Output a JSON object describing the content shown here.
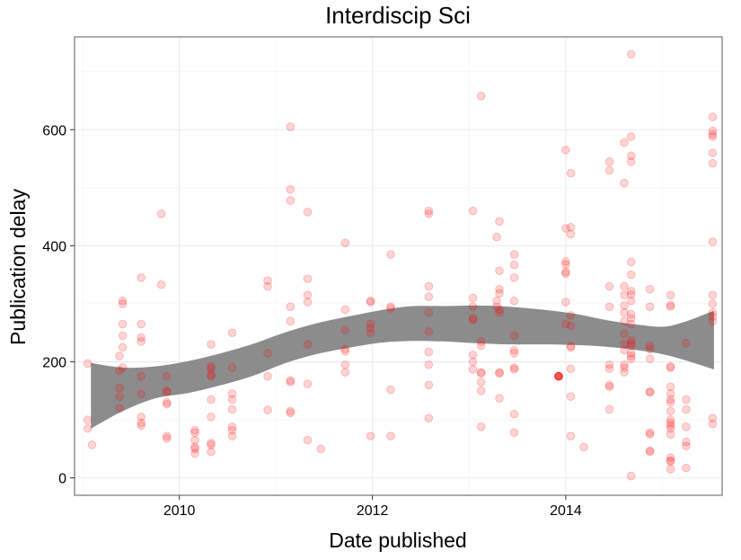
{
  "chart_data": {
    "type": "scatter",
    "title": "Interdiscip Sci",
    "xlabel": "Date published",
    "ylabel": "Publication delay",
    "x_axis_type": "date",
    "xlim": [
      "2008-12-01",
      "2015-08-15"
    ],
    "ylim": [
      -30,
      760
    ],
    "x_ticks": [
      {
        "value": "2010-01-01",
        "label": "2010"
      },
      {
        "value": "2012-01-01",
        "label": "2012"
      },
      {
        "value": "2014-01-01",
        "label": "2014"
      }
    ],
    "y_ticks": [
      {
        "value": 0,
        "label": "0"
      },
      {
        "value": 200,
        "label": "200"
      },
      {
        "value": 400,
        "label": "400"
      },
      {
        "value": 600,
        "label": "600"
      }
    ],
    "grid": true,
    "legend": "none",
    "colors": {
      "points": "#ff0000",
      "smooth_band": "#8c8c8c",
      "panel_border": "#7f7f7f"
    },
    "point_alpha": 0.17,
    "smooth": {
      "x": [
        "2009-02-01",
        "2009-06-01",
        "2009-10-01",
        "2010-02-01",
        "2010-06-01",
        "2010-10-01",
        "2011-02-01",
        "2011-06-01",
        "2011-10-01",
        "2012-02-01",
        "2012-06-01",
        "2012-10-01",
        "2013-02-01",
        "2013-06-01",
        "2013-10-01",
        "2014-02-01",
        "2014-06-01",
        "2014-10-01",
        "2015-02-01",
        "2015-07-15"
      ],
      "lower": [
        85,
        115,
        137,
        146,
        159,
        175,
        197,
        213,
        224,
        233,
        236,
        235,
        232,
        230,
        230,
        229,
        226,
        220,
        210,
        187
      ],
      "upper": [
        198,
        190,
        192,
        201,
        214,
        230,
        250,
        266,
        278,
        289,
        296,
        296,
        297,
        295,
        290,
        283,
        272,
        264,
        262,
        288
      ]
    },
    "points": [
      {
        "x": "2009-01-20",
        "y": 197
      },
      {
        "x": "2009-01-20",
        "y": 100
      },
      {
        "x": "2009-01-20",
        "y": 85
      },
      {
        "x": "2009-02-05",
        "y": 57
      },
      {
        "x": "2009-05-20",
        "y": 210
      },
      {
        "x": "2009-05-20",
        "y": 185
      },
      {
        "x": "2009-05-20",
        "y": 155
      },
      {
        "x": "2009-05-20",
        "y": 140
      },
      {
        "x": "2009-05-20",
        "y": 120
      },
      {
        "x": "2009-06-01",
        "y": 305
      },
      {
        "x": "2009-06-01",
        "y": 300
      },
      {
        "x": "2009-06-01",
        "y": 265
      },
      {
        "x": "2009-06-01",
        "y": 245
      },
      {
        "x": "2009-06-01",
        "y": 225
      },
      {
        "x": "2009-06-01",
        "y": 190
      },
      {
        "x": "2009-08-10",
        "y": 345
      },
      {
        "x": "2009-08-10",
        "y": 265
      },
      {
        "x": "2009-08-10",
        "y": 242
      },
      {
        "x": "2009-08-10",
        "y": 235
      },
      {
        "x": "2009-08-10",
        "y": 175
      },
      {
        "x": "2009-08-10",
        "y": 145
      },
      {
        "x": "2009-08-10",
        "y": 105
      },
      {
        "x": "2009-08-10",
        "y": 95
      },
      {
        "x": "2009-08-10",
        "y": 90
      },
      {
        "x": "2009-10-25",
        "y": 455
      },
      {
        "x": "2009-10-25",
        "y": 333
      },
      {
        "x": "2009-11-15",
        "y": 175
      },
      {
        "x": "2009-11-15",
        "y": 150
      },
      {
        "x": "2009-11-15",
        "y": 148
      },
      {
        "x": "2009-11-15",
        "y": 130
      },
      {
        "x": "2009-11-15",
        "y": 127
      },
      {
        "x": "2009-11-15",
        "y": 72
      },
      {
        "x": "2009-11-15",
        "y": 68
      },
      {
        "x": "2010-03-01",
        "y": 82
      },
      {
        "x": "2010-03-01",
        "y": 78
      },
      {
        "x": "2010-03-01",
        "y": 65
      },
      {
        "x": "2010-03-01",
        "y": 53
      },
      {
        "x": "2010-03-01",
        "y": 50
      },
      {
        "x": "2010-03-01",
        "y": 42
      },
      {
        "x": "2010-05-01",
        "y": 230
      },
      {
        "x": "2010-05-01",
        "y": 192
      },
      {
        "x": "2010-05-01",
        "y": 188
      },
      {
        "x": "2010-05-01",
        "y": 178
      },
      {
        "x": "2010-05-01",
        "y": 175
      },
      {
        "x": "2010-05-01",
        "y": 135
      },
      {
        "x": "2010-05-01",
        "y": 105
      },
      {
        "x": "2010-05-01",
        "y": 60
      },
      {
        "x": "2010-05-01",
        "y": 57
      },
      {
        "x": "2010-05-01",
        "y": 45
      },
      {
        "x": "2010-07-20",
        "y": 250
      },
      {
        "x": "2010-07-20",
        "y": 190
      },
      {
        "x": "2010-07-20",
        "y": 145
      },
      {
        "x": "2010-07-20",
        "y": 135
      },
      {
        "x": "2010-07-20",
        "y": 118
      },
      {
        "x": "2010-07-20",
        "y": 88
      },
      {
        "x": "2010-07-20",
        "y": 82
      },
      {
        "x": "2010-07-20",
        "y": 72
      },
      {
        "x": "2010-12-01",
        "y": 340
      },
      {
        "x": "2010-12-01",
        "y": 330
      },
      {
        "x": "2010-12-01",
        "y": 215
      },
      {
        "x": "2010-12-01",
        "y": 175
      },
      {
        "x": "2010-12-01",
        "y": 117
      },
      {
        "x": "2011-02-25",
        "y": 605
      },
      {
        "x": "2011-02-25",
        "y": 497
      },
      {
        "x": "2011-02-25",
        "y": 478
      },
      {
        "x": "2011-02-25",
        "y": 295
      },
      {
        "x": "2011-02-25",
        "y": 270
      },
      {
        "x": "2011-02-25",
        "y": 168
      },
      {
        "x": "2011-02-25",
        "y": 165
      },
      {
        "x": "2011-02-25",
        "y": 115
      },
      {
        "x": "2011-02-25",
        "y": 112
      },
      {
        "x": "2011-05-01",
        "y": 458
      },
      {
        "x": "2011-05-01",
        "y": 343
      },
      {
        "x": "2011-05-01",
        "y": 315
      },
      {
        "x": "2011-05-01",
        "y": 303
      },
      {
        "x": "2011-05-01",
        "y": 230
      },
      {
        "x": "2011-05-01",
        "y": 162
      },
      {
        "x": "2011-05-01",
        "y": 65
      },
      {
        "x": "2011-06-20",
        "y": 50
      },
      {
        "x": "2011-09-20",
        "y": 405
      },
      {
        "x": "2011-09-20",
        "y": 290
      },
      {
        "x": "2011-09-20",
        "y": 255
      },
      {
        "x": "2011-09-20",
        "y": 222
      },
      {
        "x": "2011-09-20",
        "y": 218
      },
      {
        "x": "2011-09-20",
        "y": 195
      },
      {
        "x": "2011-09-20",
        "y": 182
      },
      {
        "x": "2011-12-25",
        "y": 305
      },
      {
        "x": "2011-12-25",
        "y": 303
      },
      {
        "x": "2011-12-25",
        "y": 265
      },
      {
        "x": "2011-12-25",
        "y": 258
      },
      {
        "x": "2011-12-25",
        "y": 250
      },
      {
        "x": "2011-12-25",
        "y": 72
      },
      {
        "x": "2012-03-10",
        "y": 385
      },
      {
        "x": "2012-03-10",
        "y": 295
      },
      {
        "x": "2012-03-10",
        "y": 292
      },
      {
        "x": "2012-03-10",
        "y": 152
      },
      {
        "x": "2012-03-10",
        "y": 72
      },
      {
        "x": "2012-08-01",
        "y": 460
      },
      {
        "x": "2012-08-01",
        "y": 455
      },
      {
        "x": "2012-08-01",
        "y": 330
      },
      {
        "x": "2012-08-01",
        "y": 312
      },
      {
        "x": "2012-08-01",
        "y": 285
      },
      {
        "x": "2012-08-01",
        "y": 252
      },
      {
        "x": "2012-08-01",
        "y": 217
      },
      {
        "x": "2012-08-01",
        "y": 195
      },
      {
        "x": "2012-08-01",
        "y": 160
      },
      {
        "x": "2012-08-01",
        "y": 103
      },
      {
        "x": "2013-01-15",
        "y": 460
      },
      {
        "x": "2013-01-15",
        "y": 310
      },
      {
        "x": "2013-01-15",
        "y": 295
      },
      {
        "x": "2013-01-15",
        "y": 275
      },
      {
        "x": "2013-01-15",
        "y": 272
      },
      {
        "x": "2013-01-15",
        "y": 212
      },
      {
        "x": "2013-01-15",
        "y": 200
      },
      {
        "x": "2013-01-15",
        "y": 187
      },
      {
        "x": "2013-02-15",
        "y": 658
      },
      {
        "x": "2013-02-15",
        "y": 235
      },
      {
        "x": "2013-02-15",
        "y": 228
      },
      {
        "x": "2013-02-15",
        "y": 182
      },
      {
        "x": "2013-02-15",
        "y": 180
      },
      {
        "x": "2013-02-15",
        "y": 165
      },
      {
        "x": "2013-02-15",
        "y": 150
      },
      {
        "x": "2013-02-15",
        "y": 88
      },
      {
        "x": "2013-04-15",
        "y": 415
      },
      {
        "x": "2013-04-15",
        "y": 305
      },
      {
        "x": "2013-04-15",
        "y": 295
      },
      {
        "x": "2013-04-25",
        "y": 442
      },
      {
        "x": "2013-04-25",
        "y": 357
      },
      {
        "x": "2013-04-25",
        "y": 325
      },
      {
        "x": "2013-04-25",
        "y": 318
      },
      {
        "x": "2013-04-25",
        "y": 290
      },
      {
        "x": "2013-04-25",
        "y": 285
      },
      {
        "x": "2013-04-25",
        "y": 182
      },
      {
        "x": "2013-04-25",
        "y": 180
      },
      {
        "x": "2013-04-25",
        "y": 137
      },
      {
        "x": "2013-06-20",
        "y": 385
      },
      {
        "x": "2013-06-20",
        "y": 367
      },
      {
        "x": "2013-06-20",
        "y": 345
      },
      {
        "x": "2013-06-20",
        "y": 305
      },
      {
        "x": "2013-06-20",
        "y": 245
      },
      {
        "x": "2013-06-20",
        "y": 220
      },
      {
        "x": "2013-06-20",
        "y": 215
      },
      {
        "x": "2013-06-20",
        "y": 190
      },
      {
        "x": "2013-06-20",
        "y": 187
      },
      {
        "x": "2013-06-20",
        "y": 110
      },
      {
        "x": "2013-06-20",
        "y": 78
      },
      {
        "x": "2013-12-05",
        "y": 175
      },
      {
        "x": "2013-12-05",
        "y": 175
      },
      {
        "x": "2013-12-05",
        "y": 175
      },
      {
        "x": "2013-12-05",
        "y": 175
      },
      {
        "x": "2013-12-05",
        "y": 175
      },
      {
        "x": "2013-12-05",
        "y": 175
      },
      {
        "x": "2014-01-01",
        "y": 565
      },
      {
        "x": "2014-01-01",
        "y": 430
      },
      {
        "x": "2014-01-01",
        "y": 373
      },
      {
        "x": "2014-01-01",
        "y": 368
      },
      {
        "x": "2014-01-01",
        "y": 355
      },
      {
        "x": "2014-01-01",
        "y": 352
      },
      {
        "x": "2014-01-01",
        "y": 303
      },
      {
        "x": "2014-01-01",
        "y": 265
      },
      {
        "x": "2014-01-20",
        "y": 525
      },
      {
        "x": "2014-01-20",
        "y": 432
      },
      {
        "x": "2014-01-20",
        "y": 420
      },
      {
        "x": "2014-01-20",
        "y": 280
      },
      {
        "x": "2014-01-20",
        "y": 262
      },
      {
        "x": "2014-01-20",
        "y": 227
      },
      {
        "x": "2014-01-20",
        "y": 225
      },
      {
        "x": "2014-01-20",
        "y": 188
      },
      {
        "x": "2014-01-20",
        "y": 140
      },
      {
        "x": "2014-01-20",
        "y": 72
      },
      {
        "x": "2014-03-10",
        "y": 53
      },
      {
        "x": "2014-06-15",
        "y": 545
      },
      {
        "x": "2014-06-15",
        "y": 530
      },
      {
        "x": "2014-06-15",
        "y": 330
      },
      {
        "x": "2014-06-15",
        "y": 295
      },
      {
        "x": "2014-06-15",
        "y": 195
      },
      {
        "x": "2014-06-15",
        "y": 188
      },
      {
        "x": "2014-06-15",
        "y": 160
      },
      {
        "x": "2014-06-15",
        "y": 157
      },
      {
        "x": "2014-06-15",
        "y": 118
      },
      {
        "x": "2014-08-10",
        "y": 578
      },
      {
        "x": "2014-08-10",
        "y": 508
      },
      {
        "x": "2014-08-10",
        "y": 330
      },
      {
        "x": "2014-08-10",
        "y": 315
      },
      {
        "x": "2014-08-10",
        "y": 297
      },
      {
        "x": "2014-08-10",
        "y": 285
      },
      {
        "x": "2014-08-10",
        "y": 270
      },
      {
        "x": "2014-08-10",
        "y": 248
      },
      {
        "x": "2014-08-10",
        "y": 230
      },
      {
        "x": "2014-08-10",
        "y": 220
      },
      {
        "x": "2014-08-10",
        "y": 195
      },
      {
        "x": "2014-08-10",
        "y": 190
      },
      {
        "x": "2014-08-10",
        "y": 182
      },
      {
        "x": "2014-09-05",
        "y": 730
      },
      {
        "x": "2014-09-05",
        "y": 588
      },
      {
        "x": "2014-09-05",
        "y": 555
      },
      {
        "x": "2014-09-05",
        "y": 545
      },
      {
        "x": "2014-09-05",
        "y": 372
      },
      {
        "x": "2014-09-05",
        "y": 350
      },
      {
        "x": "2014-09-05",
        "y": 322
      },
      {
        "x": "2014-09-05",
        "y": 316
      },
      {
        "x": "2014-09-05",
        "y": 305
      },
      {
        "x": "2014-09-05",
        "y": 282
      },
      {
        "x": "2014-09-05",
        "y": 275
      },
      {
        "x": "2014-09-05",
        "y": 265
      },
      {
        "x": "2014-09-05",
        "y": 237
      },
      {
        "x": "2014-09-05",
        "y": 232
      },
      {
        "x": "2014-09-05",
        "y": 228
      },
      {
        "x": "2014-09-05",
        "y": 215
      },
      {
        "x": "2014-09-05",
        "y": 210
      },
      {
        "x": "2014-09-05",
        "y": 205
      },
      {
        "x": "2014-09-05",
        "y": 3
      },
      {
        "x": "2014-11-15",
        "y": 325
      },
      {
        "x": "2014-11-15",
        "y": 295
      },
      {
        "x": "2014-11-15",
        "y": 228
      },
      {
        "x": "2014-11-15",
        "y": 222
      },
      {
        "x": "2014-11-15",
        "y": 205
      },
      {
        "x": "2014-11-15",
        "y": 148
      },
      {
        "x": "2014-11-15",
        "y": 148
      },
      {
        "x": "2014-11-15",
        "y": 78
      },
      {
        "x": "2014-11-15",
        "y": 75
      },
      {
        "x": "2014-11-15",
        "y": 47
      },
      {
        "x": "2014-11-15",
        "y": 45
      },
      {
        "x": "2015-02-01",
        "y": 315
      },
      {
        "x": "2015-02-01",
        "y": 298
      },
      {
        "x": "2015-02-01",
        "y": 295
      },
      {
        "x": "2015-02-01",
        "y": 192
      },
      {
        "x": "2015-02-01",
        "y": 190
      },
      {
        "x": "2015-02-01",
        "y": 157
      },
      {
        "x": "2015-02-01",
        "y": 145
      },
      {
        "x": "2015-02-01",
        "y": 135
      },
      {
        "x": "2015-02-01",
        "y": 130
      },
      {
        "x": "2015-02-01",
        "y": 115
      },
      {
        "x": "2015-02-01",
        "y": 100
      },
      {
        "x": "2015-02-01",
        "y": 95
      },
      {
        "x": "2015-02-01",
        "y": 90
      },
      {
        "x": "2015-02-01",
        "y": 85
      },
      {
        "x": "2015-02-01",
        "y": 75
      },
      {
        "x": "2015-02-01",
        "y": 35
      },
      {
        "x": "2015-02-01",
        "y": 30
      },
      {
        "x": "2015-02-01",
        "y": 28
      },
      {
        "x": "2015-02-01",
        "y": 15
      },
      {
        "x": "2015-04-01",
        "y": 232
      },
      {
        "x": "2015-04-01",
        "y": 135
      },
      {
        "x": "2015-04-01",
        "y": 118
      },
      {
        "x": "2015-04-01",
        "y": 88
      },
      {
        "x": "2015-04-01",
        "y": 62
      },
      {
        "x": "2015-04-01",
        "y": 55
      },
      {
        "x": "2015-04-01",
        "y": 17
      },
      {
        "x": "2015-07-10",
        "y": 622
      },
      {
        "x": "2015-07-10",
        "y": 598
      },
      {
        "x": "2015-07-10",
        "y": 592
      },
      {
        "x": "2015-07-10",
        "y": 588
      },
      {
        "x": "2015-07-10",
        "y": 560
      },
      {
        "x": "2015-07-10",
        "y": 542
      },
      {
        "x": "2015-07-10",
        "y": 407
      },
      {
        "x": "2015-07-10",
        "y": 315
      },
      {
        "x": "2015-07-10",
        "y": 300
      },
      {
        "x": "2015-07-10",
        "y": 285
      },
      {
        "x": "2015-07-10",
        "y": 278
      },
      {
        "x": "2015-07-10",
        "y": 270
      },
      {
        "x": "2015-07-10",
        "y": 103
      },
      {
        "x": "2015-07-10",
        "y": 93
      }
    ]
  }
}
